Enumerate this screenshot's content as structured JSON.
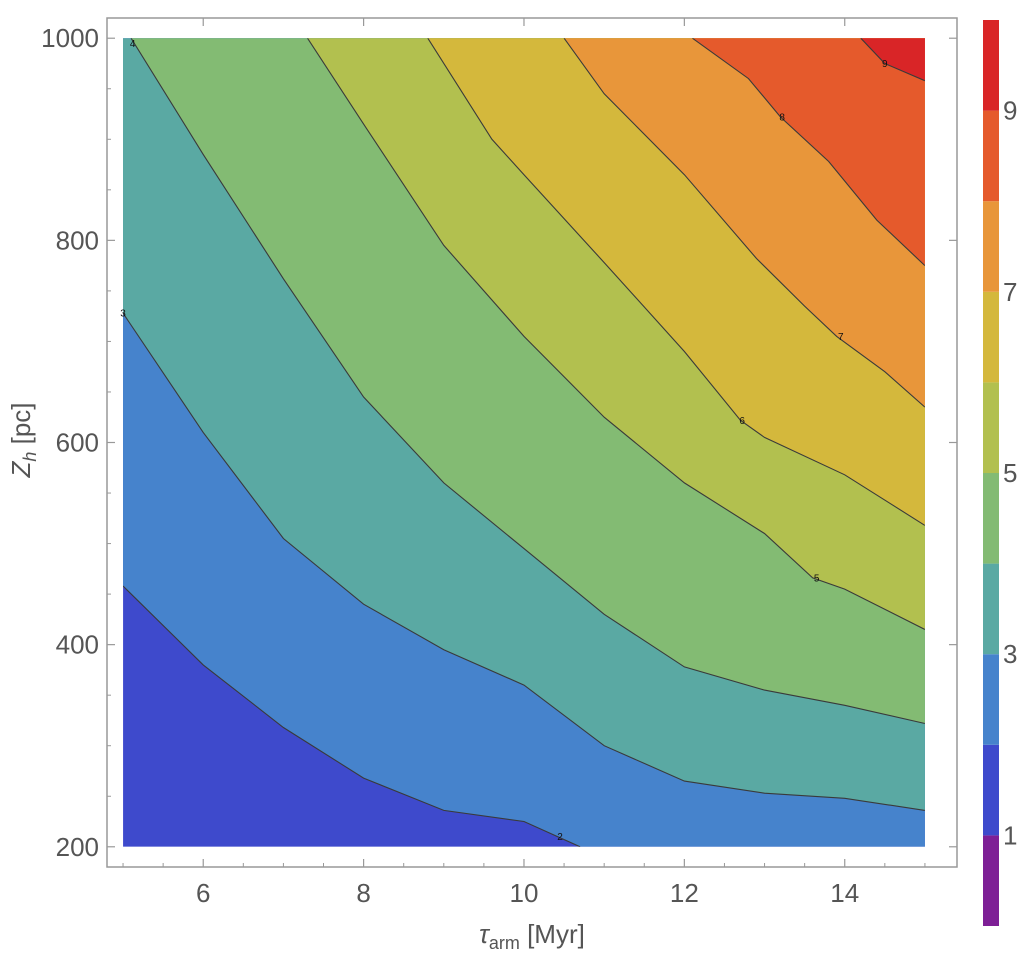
{
  "chart_data": {
    "type": "contour",
    "xlabel_main": "τ",
    "xlabel_sub": "arm",
    "xlabel_unit": " [Myr]",
    "ylabel_main": "Z",
    "ylabel_sub": "h",
    "ylabel_unit": " [pc]",
    "xlim": [
      4.8,
      15.4
    ],
    "ylim": [
      180,
      1020
    ],
    "x_ticks": [
      6,
      8,
      10,
      12,
      14
    ],
    "y_ticks": [
      200,
      400,
      600,
      800,
      1000
    ],
    "x_tick_labels": [
      "6",
      "8",
      "10",
      "12",
      "14"
    ],
    "y_tick_labels": [
      "200",
      "400",
      "600",
      "800",
      "1000"
    ],
    "data_domain": {
      "x": [
        5,
        15
      ],
      "y": [
        200,
        1000
      ]
    },
    "colorbar": {
      "range": [
        0,
        10
      ],
      "ticks": [
        1,
        3,
        5,
        7,
        9
      ],
      "tick_labels": [
        "1",
        "3",
        "5",
        "7",
        "9"
      ]
    },
    "levels": [
      {
        "value": 2,
        "label": "2",
        "line": [
          [
            5,
            458
          ],
          [
            6,
            380
          ],
          [
            7,
            318
          ],
          [
            8,
            268
          ],
          [
            9,
            236
          ],
          [
            10,
            225
          ],
          [
            10.7,
            200
          ]
        ],
        "label_at": [
          10.45,
          210
        ]
      },
      {
        "value": 3,
        "label": "3",
        "line": [
          [
            5,
            728
          ],
          [
            6,
            610
          ],
          [
            7,
            505
          ],
          [
            8,
            440
          ],
          [
            9,
            395
          ],
          [
            10,
            360
          ],
          [
            11,
            300
          ],
          [
            12,
            265
          ],
          [
            13,
            253
          ],
          [
            14,
            248
          ],
          [
            15,
            236
          ]
        ],
        "label_at": [
          5.0,
          728
        ]
      },
      {
        "value": 4,
        "label": "4",
        "line": [
          [
            5.1,
            1000
          ],
          [
            6,
            885
          ],
          [
            7,
            762
          ],
          [
            8,
            645
          ],
          [
            9,
            560
          ],
          [
            10,
            495
          ],
          [
            11,
            430
          ],
          [
            12,
            378
          ],
          [
            13,
            355
          ],
          [
            14,
            340
          ],
          [
            15,
            322
          ]
        ],
        "label_at": [
          5.12,
          995
        ]
      },
      {
        "value": 5,
        "label": "5",
        "line": [
          [
            7.3,
            1000
          ],
          [
            8,
            915
          ],
          [
            9,
            795
          ],
          [
            10,
            705
          ],
          [
            11,
            625
          ],
          [
            12,
            560
          ],
          [
            13,
            510
          ],
          [
            13.6,
            466
          ],
          [
            14,
            455
          ],
          [
            15,
            415
          ]
        ],
        "label_at": [
          13.65,
          466
        ]
      },
      {
        "value": 6,
        "label": "6",
        "line": [
          [
            8.8,
            1000
          ],
          [
            9.6,
            900
          ],
          [
            10,
            865
          ],
          [
            11,
            778
          ],
          [
            12,
            690
          ],
          [
            12.7,
            622
          ],
          [
            13,
            605
          ],
          [
            14,
            568
          ],
          [
            15,
            518
          ]
        ],
        "label_at": [
          12.72,
          622
        ]
      },
      {
        "value": 7,
        "label": "7",
        "line": [
          [
            10.5,
            1000
          ],
          [
            11,
            945
          ],
          [
            12,
            865
          ],
          [
            12.9,
            782
          ],
          [
            13.5,
            735
          ],
          [
            13.9,
            705
          ],
          [
            14.5,
            670
          ],
          [
            15,
            635
          ]
        ],
        "label_at": [
          13.95,
          705
        ]
      },
      {
        "value": 8,
        "label": "8",
        "line": [
          [
            12.1,
            1000
          ],
          [
            12.8,
            960
          ],
          [
            13.2,
            922
          ],
          [
            13.8,
            878
          ],
          [
            14.4,
            820
          ],
          [
            15,
            775
          ]
        ],
        "label_at": [
          13.22,
          922
        ]
      },
      {
        "value": 9,
        "label": "9",
        "line": [
          [
            14.2,
            1000
          ],
          [
            14.5,
            975
          ],
          [
            15,
            958
          ]
        ],
        "label_at": [
          14.5,
          975
        ]
      }
    ],
    "band_colors": [
      "#3e4acc",
      "#4683cc",
      "#5aa9a3",
      "#83bb73",
      "#b2c04f",
      "#d4b83c",
      "#e8963a",
      "#e55a2c",
      "#d92527"
    ],
    "colorbar_colors": [
      "#7e1f96",
      "#3e4acc",
      "#4683cc",
      "#5aa9a3",
      "#83bb73",
      "#b2c04f",
      "#d4b83c",
      "#e8963a",
      "#e55a2c",
      "#d92527"
    ],
    "line_color": "#3a3a3a",
    "frame_color": "#999999"
  }
}
